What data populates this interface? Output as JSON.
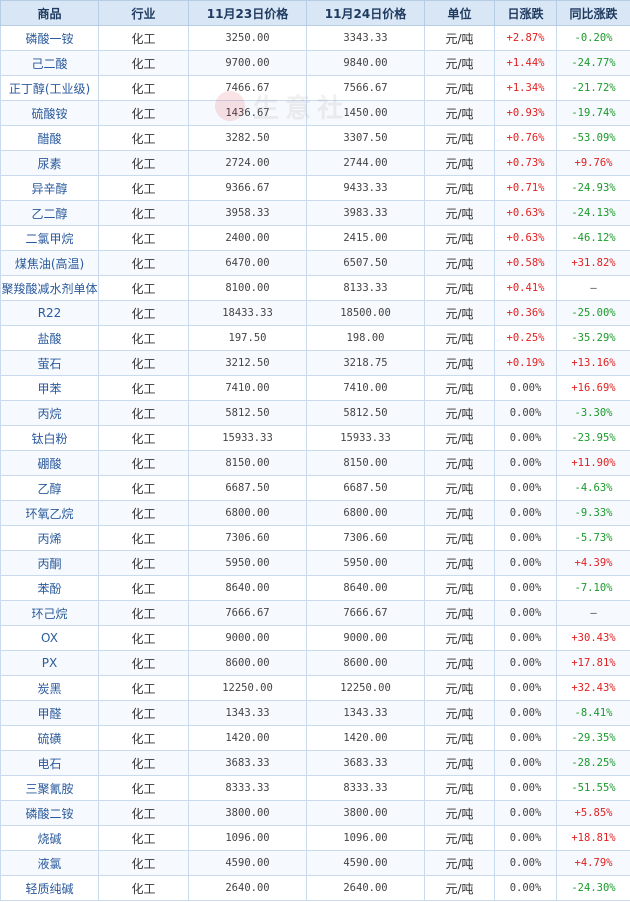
{
  "columns": [
    "商品",
    "行业",
    "11月23日价格",
    "11月24日价格",
    "单位",
    "日涨跌",
    "同比涨跌"
  ],
  "watermark": "生意社",
  "rows": [
    [
      "磷酸一铵",
      "化工",
      "3250.00",
      "3343.33",
      "元/吨",
      "+2.87%",
      "-0.20%"
    ],
    [
      "己二酸",
      "化工",
      "9700.00",
      "9840.00",
      "元/吨",
      "+1.44%",
      "-24.77%"
    ],
    [
      "正丁醇(工业级)",
      "化工",
      "7466.67",
      "7566.67",
      "元/吨",
      "+1.34%",
      "-21.72%"
    ],
    [
      "硫酸铵",
      "化工",
      "1436.67",
      "1450.00",
      "元/吨",
      "+0.93%",
      "-19.74%"
    ],
    [
      "醋酸",
      "化工",
      "3282.50",
      "3307.50",
      "元/吨",
      "+0.76%",
      "-53.09%"
    ],
    [
      "尿素",
      "化工",
      "2724.00",
      "2744.00",
      "元/吨",
      "+0.73%",
      "+9.76%"
    ],
    [
      "异辛醇",
      "化工",
      "9366.67",
      "9433.33",
      "元/吨",
      "+0.71%",
      "-24.93%"
    ],
    [
      "乙二醇",
      "化工",
      "3958.33",
      "3983.33",
      "元/吨",
      "+0.63%",
      "-24.13%"
    ],
    [
      "二氯甲烷",
      "化工",
      "2400.00",
      "2415.00",
      "元/吨",
      "+0.63%",
      "-46.12%"
    ],
    [
      "煤焦油(高温)",
      "化工",
      "6470.00",
      "6507.50",
      "元/吨",
      "+0.58%",
      "+31.82%"
    ],
    [
      "聚羧酸减水剂单体",
      "化工",
      "8100.00",
      "8133.33",
      "元/吨",
      "+0.41%",
      "—"
    ],
    [
      "R22",
      "化工",
      "18433.33",
      "18500.00",
      "元/吨",
      "+0.36%",
      "-25.00%"
    ],
    [
      "盐酸",
      "化工",
      "197.50",
      "198.00",
      "元/吨",
      "+0.25%",
      "-35.29%"
    ],
    [
      "萤石",
      "化工",
      "3212.50",
      "3218.75",
      "元/吨",
      "+0.19%",
      "+13.16%"
    ],
    [
      "甲苯",
      "化工",
      "7410.00",
      "7410.00",
      "元/吨",
      "0.00%",
      "+16.69%"
    ],
    [
      "丙烷",
      "化工",
      "5812.50",
      "5812.50",
      "元/吨",
      "0.00%",
      "-3.30%"
    ],
    [
      "钛白粉",
      "化工",
      "15933.33",
      "15933.33",
      "元/吨",
      "0.00%",
      "-23.95%"
    ],
    [
      "硼酸",
      "化工",
      "8150.00",
      "8150.00",
      "元/吨",
      "0.00%",
      "+11.90%"
    ],
    [
      "乙醇",
      "化工",
      "6687.50",
      "6687.50",
      "元/吨",
      "0.00%",
      "-4.63%"
    ],
    [
      "环氧乙烷",
      "化工",
      "6800.00",
      "6800.00",
      "元/吨",
      "0.00%",
      "-9.33%"
    ],
    [
      "丙烯",
      "化工",
      "7306.60",
      "7306.60",
      "元/吨",
      "0.00%",
      "-5.73%"
    ],
    [
      "丙酮",
      "化工",
      "5950.00",
      "5950.00",
      "元/吨",
      "0.00%",
      "+4.39%"
    ],
    [
      "苯酚",
      "化工",
      "8640.00",
      "8640.00",
      "元/吨",
      "0.00%",
      "-7.10%"
    ],
    [
      "环己烷",
      "化工",
      "7666.67",
      "7666.67",
      "元/吨",
      "0.00%",
      "—"
    ],
    [
      "OX",
      "化工",
      "9000.00",
      "9000.00",
      "元/吨",
      "0.00%",
      "+30.43%"
    ],
    [
      "PX",
      "化工",
      "8600.00",
      "8600.00",
      "元/吨",
      "0.00%",
      "+17.81%"
    ],
    [
      "炭黑",
      "化工",
      "12250.00",
      "12250.00",
      "元/吨",
      "0.00%",
      "+32.43%"
    ],
    [
      "甲醛",
      "化工",
      "1343.33",
      "1343.33",
      "元/吨",
      "0.00%",
      "-8.41%"
    ],
    [
      "硫磺",
      "化工",
      "1420.00",
      "1420.00",
      "元/吨",
      "0.00%",
      "-29.35%"
    ],
    [
      "电石",
      "化工",
      "3683.33",
      "3683.33",
      "元/吨",
      "0.00%",
      "-28.25%"
    ],
    [
      "三聚氰胺",
      "化工",
      "8333.33",
      "8333.33",
      "元/吨",
      "0.00%",
      "-51.55%"
    ],
    [
      "磷酸二铵",
      "化工",
      "3800.00",
      "3800.00",
      "元/吨",
      "0.00%",
      "+5.85%"
    ],
    [
      "烧碱",
      "化工",
      "1096.00",
      "1096.00",
      "元/吨",
      "0.00%",
      "+18.81%"
    ],
    [
      "液氯",
      "化工",
      "4590.00",
      "4590.00",
      "元/吨",
      "0.00%",
      "+4.79%"
    ],
    [
      "轻质纯碱",
      "化工",
      "2640.00",
      "2640.00",
      "元/吨",
      "0.00%",
      "-24.30%"
    ]
  ]
}
